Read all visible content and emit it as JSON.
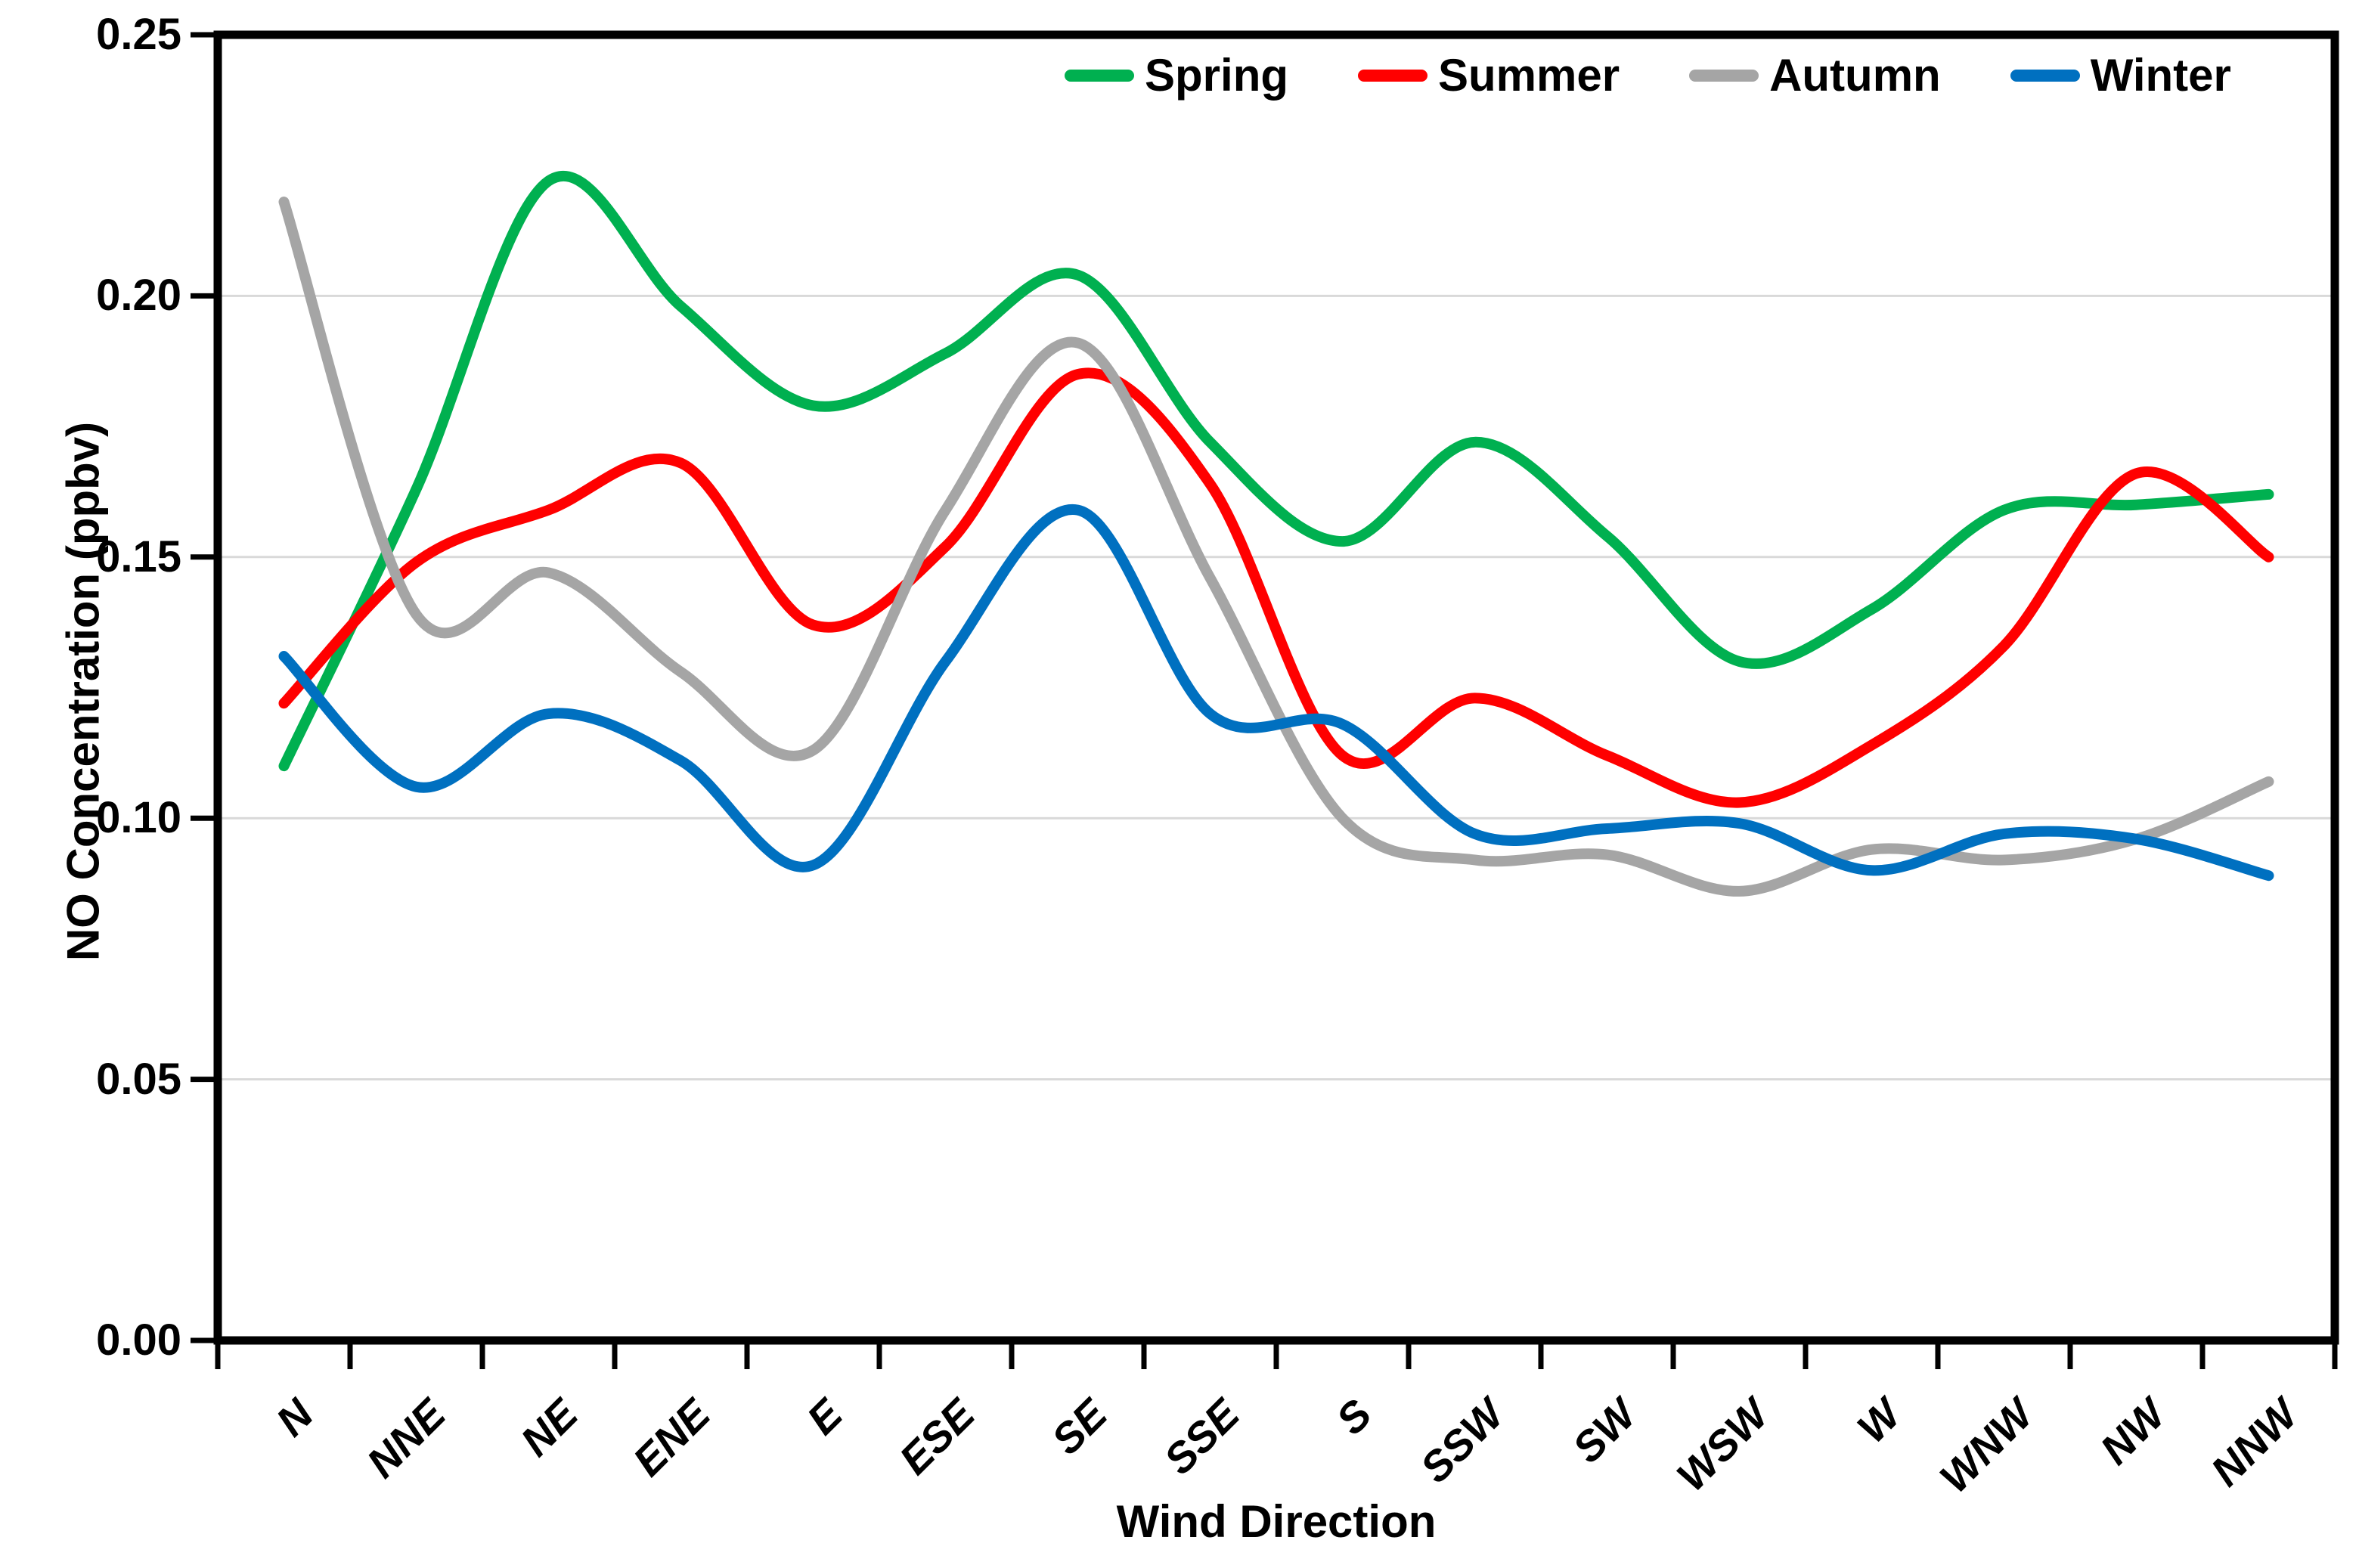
{
  "chart_data": {
    "type": "line",
    "smoothed": true,
    "title": "",
    "xlabel": "Wind Direction",
    "ylabel": "NO Concentration (ppbv)",
    "categories": [
      "N",
      "NNE",
      "NE",
      "ENE",
      "E",
      "ESE",
      "SE",
      "SSE",
      "S",
      "SSW",
      "SW",
      "WSW",
      "W",
      "WNW",
      "NW",
      "NNW"
    ],
    "series": [
      {
        "name": "Spring",
        "color": "#00B050",
        "values": [
          0.11,
          0.163,
          0.222,
          0.198,
          0.179,
          0.189,
          0.204,
          0.172,
          0.153,
          0.172,
          0.154,
          0.13,
          0.14,
          0.159,
          0.16,
          0.162
        ]
      },
      {
        "name": "Summer",
        "color": "#FF0000",
        "values": [
          0.122,
          0.149,
          0.159,
          0.168,
          0.137,
          0.152,
          0.185,
          0.164,
          0.112,
          0.123,
          0.112,
          0.103,
          0.114,
          0.133,
          0.166,
          0.15
        ]
      },
      {
        "name": "Autumn",
        "color": "#A5A5A5",
        "values": [
          0.218,
          0.139,
          0.147,
          0.128,
          0.113,
          0.159,
          0.191,
          0.146,
          0.1,
          0.092,
          0.093,
          0.086,
          0.094,
          0.092,
          0.096,
          0.107
        ]
      },
      {
        "name": "Winter",
        "color": "#0070C0",
        "values": [
          0.131,
          0.106,
          0.12,
          0.111,
          0.091,
          0.13,
          0.159,
          0.12,
          0.118,
          0.097,
          0.098,
          0.099,
          0.09,
          0.097,
          0.096,
          0.089
        ]
      }
    ],
    "ylim": [
      0,
      0.25
    ],
    "ytick_step": 0.05,
    "ytick_labels": [
      "0.00",
      "0.05",
      "0.10",
      "0.15",
      "0.20",
      "0.25"
    ],
    "grid": true,
    "legend_position": "top-inside-right",
    "axis_color": "#000000",
    "gridline_color": "#D9D9D9",
    "plot_background": "#FFFFFF"
  }
}
